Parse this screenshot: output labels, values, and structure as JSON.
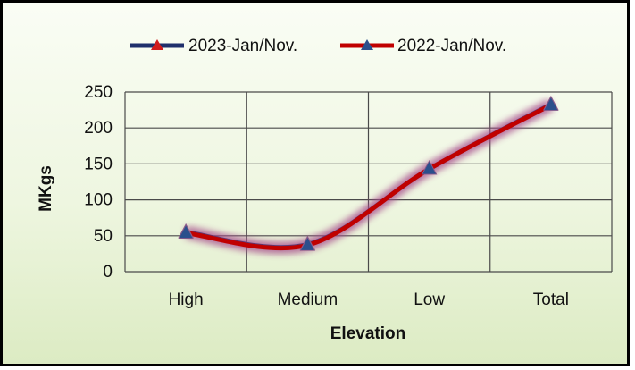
{
  "chart_data": {
    "type": "line",
    "title": "",
    "xlabel": "Elevation",
    "ylabel": "MKgs",
    "categories": [
      "High",
      "Medium",
      "Low",
      "Total"
    ],
    "ylim": [
      0,
      250
    ],
    "yticks": [
      0,
      50,
      100,
      150,
      200,
      250
    ],
    "grid": true,
    "legend_position": "top",
    "series": [
      {
        "name": "2023-Jan/Nov.",
        "values": [
          55,
          38,
          143,
          233
        ],
        "color": "#1f2f6b",
        "marker": "triangle-red"
      },
      {
        "name": "2022-Jan/Nov.",
        "values": [
          54,
          37,
          143,
          232
        ],
        "color": "#c00000",
        "marker": "triangle-blue"
      }
    ],
    "line_shadow_color": "#a54a8a"
  }
}
